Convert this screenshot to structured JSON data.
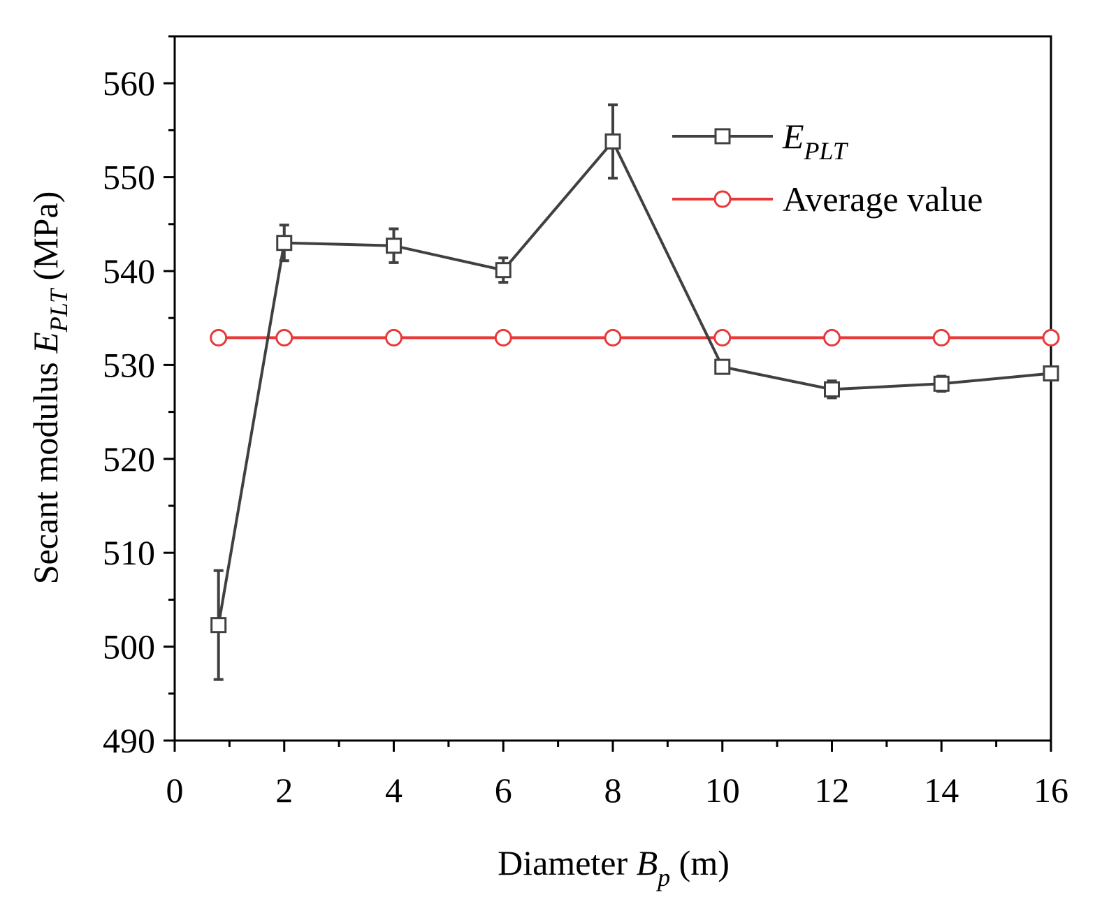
{
  "chart_data": {
    "type": "line",
    "xlabel": {
      "main": "Diameter ",
      "var": "B",
      "sub": "p",
      "unit": " (m)"
    },
    "ylabel": {
      "main": "Secant modulus ",
      "var": "E",
      "sub": "PLT",
      "unit": " (MPa)"
    },
    "xlim": [
      0,
      16
    ],
    "ylim": [
      490,
      565
    ],
    "x_ticks": [
      0,
      2,
      4,
      6,
      8,
      10,
      12,
      14,
      16
    ],
    "y_ticks": [
      490,
      500,
      510,
      520,
      530,
      540,
      550,
      560
    ],
    "x_tick_labels": [
      "0",
      "2",
      "4",
      "6",
      "8",
      "10",
      "12",
      "14",
      "16"
    ],
    "y_tick_labels": [
      "490",
      "500",
      "510",
      "520",
      "530",
      "540",
      "550",
      "560"
    ],
    "grid": false,
    "legend_position": "top-right",
    "series": [
      {
        "name": "E_PLT",
        "legend": {
          "var": "E",
          "sub": "PLT"
        },
        "color": "#404040",
        "marker": "square",
        "x": [
          0.8,
          2,
          4,
          6,
          8,
          10,
          12,
          14,
          16
        ],
        "y": [
          502.3,
          543.0,
          542.7,
          540.1,
          553.8,
          529.8,
          527.4,
          528.0,
          529.1
        ],
        "error": [
          5.8,
          1.9,
          1.8,
          1.3,
          3.9,
          0.5,
          0.9,
          0.8,
          0.5
        ]
      },
      {
        "name": "Average value",
        "legend": {
          "text": "Average value"
        },
        "color": "#e8393a",
        "marker": "circle",
        "x": [
          0.8,
          2,
          4,
          6,
          8,
          10,
          12,
          14,
          16
        ],
        "y": [
          532.9,
          532.9,
          532.9,
          532.9,
          532.9,
          532.9,
          532.9,
          532.9,
          532.9
        ]
      }
    ]
  }
}
